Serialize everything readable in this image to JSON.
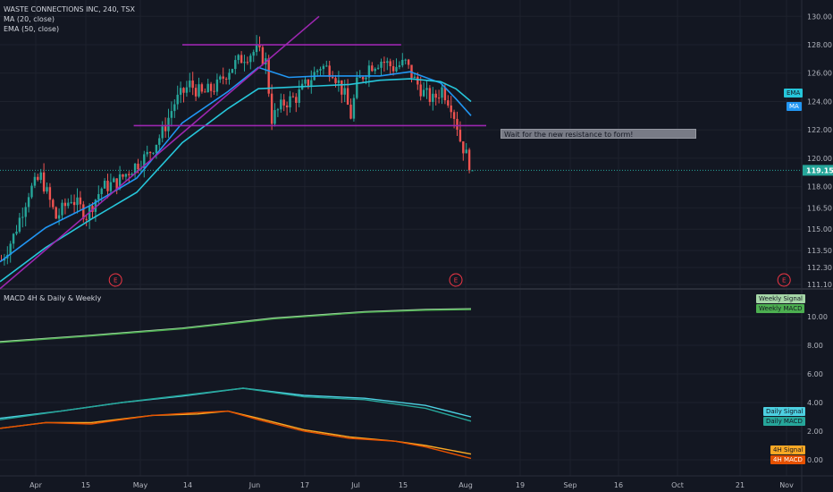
{
  "legend": {
    "main_title": "WASTE CONNECTIONS INC, 240, TSX",
    "ma_label": "MA (20, close)",
    "ema_label": "EMA (50, close)",
    "macd_title": "MACD 4H & Daily & Weekly"
  },
  "annotation_text": "Wait for the new resistance to form!",
  "earnings_marker_label": "E",
  "colors": {
    "background": "#131722",
    "grid": "#1e222d",
    "up": "#26a69a",
    "down": "#ef5350",
    "ma": "#2196f3",
    "ema": "#26c6da",
    "trendline": "#9c27b0",
    "weekly_macd": "#4caf50",
    "weekly_signal": "#a5d6a7",
    "daily_macd": "#26a69a",
    "daily_signal": "#4dd0e1",
    "macd_4h": "#f9a825",
    "signal_4h": "#e65100",
    "annotation_bg": "#787b86",
    "earnings": "#f23645"
  },
  "chart_data": [
    {
      "type": "candlestick",
      "title": "WASTE CONNECTIONS INC, 240, TSX",
      "x_ticks": [
        "Apr",
        "15",
        "May",
        "14",
        "Jun",
        "17",
        "Jul",
        "15",
        "Aug",
        "19",
        "Sep",
        "16",
        "Oct",
        "21",
        "Nov"
      ],
      "y_ticks": [
        "111.10",
        "112.30",
        "113.50",
        "115.00",
        "116.50",
        "118.00",
        "120.00",
        "122.00",
        "124.00",
        "126.00",
        "128.00",
        "130.00"
      ],
      "ylim": [
        110.6,
        130.5
      ],
      "last_price": "119.15",
      "price_path": [
        [
          0,
          112.8
        ],
        [
          4,
          114.5
        ],
        [
          9,
          117.6
        ],
        [
          13,
          118.7
        ],
        [
          18,
          115.8
        ],
        [
          23,
          117.2
        ],
        [
          28,
          116.0
        ],
        [
          33,
          117.9
        ],
        [
          38,
          118.3
        ],
        [
          43,
          119.3
        ],
        [
          48,
          120.2
        ],
        [
          53,
          121.8
        ],
        [
          57,
          123.9
        ],
        [
          62,
          125.2
        ],
        [
          66,
          124.5
        ],
        [
          71,
          125.1
        ],
        [
          75,
          126.3
        ],
        [
          80,
          127.2
        ],
        [
          84,
          127.6
        ],
        [
          87,
          126.8
        ],
        [
          89,
          122.8
        ],
        [
          93,
          123.9
        ],
        [
          97,
          124.3
        ],
        [
          101,
          125.4
        ],
        [
          105,
          126.5
        ],
        [
          109,
          126.2
        ],
        [
          113,
          124.4
        ],
        [
          115,
          123.0
        ],
        [
          117,
          125.2
        ],
        [
          121,
          126.5
        ],
        [
          125,
          126.9
        ],
        [
          129,
          126.4
        ],
        [
          133,
          126.7
        ],
        [
          136,
          125.5
        ],
        [
          139,
          124.6
        ],
        [
          142,
          124.1
        ],
        [
          145,
          124.9
        ],
        [
          148,
          123.8
        ],
        [
          150,
          122.3
        ],
        [
          151,
          121.3
        ],
        [
          153,
          120.2
        ],
        [
          155,
          119.15
        ]
      ],
      "series": [
        {
          "name": "MA (20, close)",
          "label": "MA",
          "value": "123.02",
          "path": [
            [
              0,
              112.7
            ],
            [
              15,
              115.1
            ],
            [
              30,
              116.7
            ],
            [
              45,
              118.6
            ],
            [
              60,
              122.5
            ],
            [
              75,
              124.7
            ],
            [
              85,
              126.4
            ],
            [
              95,
              125.7
            ],
            [
              105,
              125.8
            ],
            [
              115,
              125.8
            ],
            [
              125,
              125.8
            ],
            [
              135,
              126.1
            ],
            [
              145,
              125.3
            ],
            [
              150,
              124.2
            ],
            [
              155,
              123.0
            ]
          ]
        },
        {
          "name": "EMA (50, close)",
          "label": "EMA",
          "value": "124.01",
          "path": [
            [
              0,
              111.3
            ],
            [
              15,
              113.7
            ],
            [
              30,
              115.7
            ],
            [
              45,
              117.6
            ],
            [
              60,
              121.1
            ],
            [
              75,
              123.5
            ],
            [
              85,
              124.9
            ],
            [
              95,
              125.0
            ],
            [
              105,
              125.1
            ],
            [
              115,
              125.2
            ],
            [
              125,
              125.5
            ],
            [
              135,
              125.6
            ],
            [
              145,
              125.4
            ],
            [
              150,
              124.9
            ],
            [
              155,
              124.0
            ]
          ]
        }
      ],
      "trendlines": [
        {
          "name": "support-trendline",
          "from": [
            0,
            110.8
          ],
          "to": [
            105,
            130.0
          ]
        },
        {
          "name": "range-top",
          "from": [
            60,
            128.0
          ],
          "to": [
            132,
            128.0
          ]
        },
        {
          "name": "range-bottom",
          "from": [
            44,
            122.3
          ],
          "to": [
            160,
            122.3
          ]
        }
      ],
      "earnings_markers_x": [
        38,
        150,
        258
      ]
    },
    {
      "type": "line",
      "title": "MACD 4H & Daily & Weekly",
      "y_ticks": [
        "0.00",
        "2.00",
        "4.00",
        "6.00",
        "8.00",
        "10.00"
      ],
      "ylim": [
        -0.4,
        12.0
      ],
      "series": [
        {
          "name": "Weekly Signal",
          "last": "10.55",
          "path": [
            [
              0,
              8.25
            ],
            [
              30,
              8.7
            ],
            [
              60,
              9.2
            ],
            [
              90,
              9.9
            ],
            [
              120,
              10.35
            ],
            [
              140,
              10.5
            ],
            [
              155,
              10.55
            ]
          ]
        },
        {
          "name": "Weekly MACD",
          "last": "10.50",
          "path": [
            [
              0,
              8.2
            ],
            [
              30,
              8.65
            ],
            [
              60,
              9.15
            ],
            [
              90,
              9.85
            ],
            [
              120,
              10.3
            ],
            [
              140,
              10.45
            ],
            [
              155,
              10.5
            ]
          ]
        },
        {
          "name": "Daily Signal",
          "last": "3.00",
          "path": [
            [
              0,
              2.9
            ],
            [
              20,
              3.4
            ],
            [
              40,
              4.0
            ],
            [
              60,
              4.45
            ],
            [
              80,
              5.0
            ],
            [
              100,
              4.5
            ],
            [
              120,
              4.3
            ],
            [
              140,
              3.8
            ],
            [
              155,
              3.0
            ]
          ]
        },
        {
          "name": "Daily MACD",
          "last": "2.70",
          "path": [
            [
              0,
              2.8
            ],
            [
              20,
              3.4
            ],
            [
              40,
              4.0
            ],
            [
              60,
              4.5
            ],
            [
              80,
              5.0
            ],
            [
              100,
              4.4
            ],
            [
              120,
              4.2
            ],
            [
              140,
              3.6
            ],
            [
              155,
              2.7
            ]
          ]
        },
        {
          "name": "4H Signal",
          "last": "0.40",
          "path": [
            [
              0,
              2.2
            ],
            [
              15,
              2.6
            ],
            [
              30,
              2.6
            ],
            [
              50,
              3.1
            ],
            [
              65,
              3.2
            ],
            [
              75,
              3.4
            ],
            [
              85,
              2.9
            ],
            [
              100,
              2.1
            ],
            [
              115,
              1.6
            ],
            [
              130,
              1.3
            ],
            [
              140,
              1.0
            ],
            [
              155,
              0.4
            ]
          ]
        },
        {
          "name": "4H MACD",
          "last": "0.10",
          "path": [
            [
              0,
              2.2
            ],
            [
              15,
              2.6
            ],
            [
              30,
              2.5
            ],
            [
              50,
              3.1
            ],
            [
              65,
              3.3
            ],
            [
              75,
              3.4
            ],
            [
              85,
              2.8
            ],
            [
              100,
              2.0
            ],
            [
              115,
              1.5
            ],
            [
              130,
              1.3
            ],
            [
              140,
              0.9
            ],
            [
              155,
              0.1
            ]
          ]
        }
      ]
    }
  ]
}
